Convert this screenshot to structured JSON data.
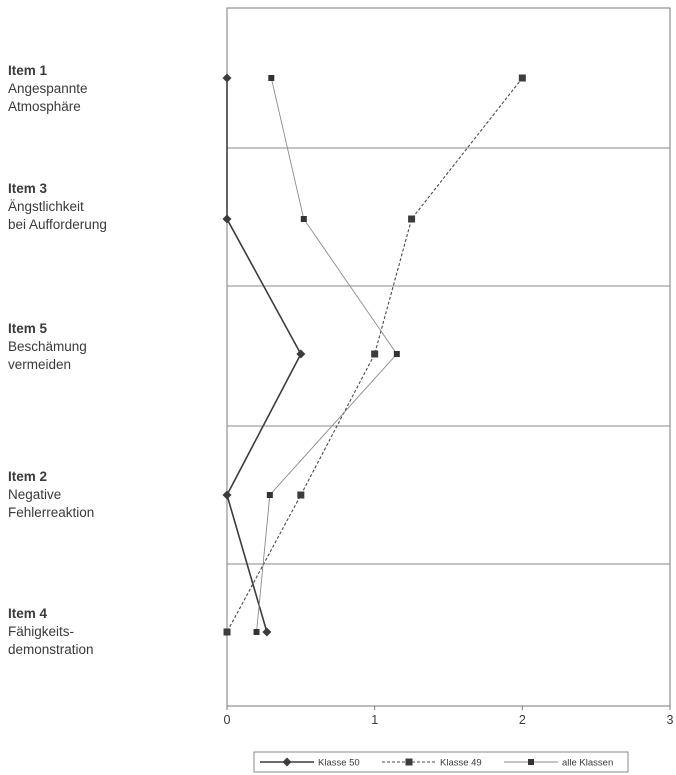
{
  "chart_data": {
    "type": "line",
    "orientation": "horizontal",
    "categories": [
      {
        "title": "Item 1",
        "lines": [
          "Angespannte",
          "Atmosphäre"
        ]
      },
      {
        "title": "Item 3",
        "lines": [
          "Ängstlichkeit",
          "bei Aufforderung"
        ]
      },
      {
        "title": "Item 5",
        "lines": [
          "Beschämung",
          "vermeiden"
        ]
      },
      {
        "title": "Item 2",
        "lines": [
          "Negative",
          "Fehlerreaktion"
        ]
      },
      {
        "title": "Item 4",
        "lines": [
          "Fähigkeits-",
          "demonstration"
        ]
      }
    ],
    "series": [
      {
        "name": "Klasse 50",
        "marker": "diamond",
        "color": "#3c3c3c",
        "values": [
          0,
          0,
          0.5,
          0,
          0.27
        ]
      },
      {
        "name": "Klasse 49",
        "marker": "square",
        "color": "#3c3c3c",
        "values": [
          2,
          1.25,
          1,
          0.5,
          0
        ]
      },
      {
        "name": "alle Klassen",
        "marker": "small-square",
        "color": "#6a6a6a",
        "values": [
          0.3,
          0.52,
          1.15,
          0.29,
          0.2
        ]
      }
    ],
    "xlim": [
      0,
      3
    ],
    "x_ticks": [
      "0",
      "1",
      "2",
      "3"
    ],
    "grid": "horizontal separators between items",
    "legend": "bottom-center"
  }
}
